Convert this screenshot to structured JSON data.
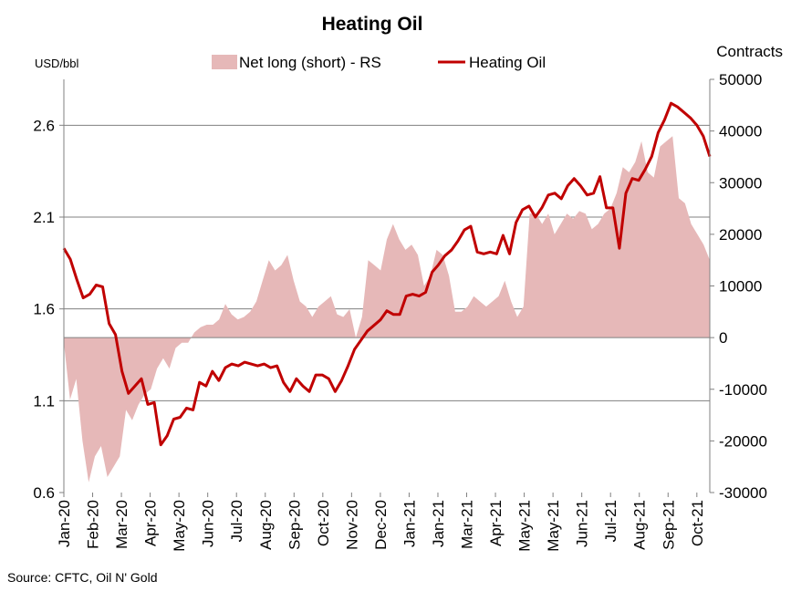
{
  "chart_data": {
    "type": "line",
    "title": "Heating Oil",
    "left_axis_label": "USD/bbl",
    "right_axis_label": "Contracts",
    "source": "Source: CFTC, Oil N' Gold",
    "left_ylim": [
      0.6,
      2.85
    ],
    "right_ylim": [
      -30000,
      50000
    ],
    "left_ticks": [
      0.6,
      1.1,
      1.6,
      2.1,
      2.6
    ],
    "left_tick_labels": [
      "0.6",
      "1.1",
      "1.6",
      "2.1",
      "2.6"
    ],
    "right_ticks": [
      -30000,
      -20000,
      -10000,
      0,
      10000,
      20000,
      30000,
      40000,
      50000
    ],
    "right_tick_labels": [
      "-30000",
      "-20000",
      "-10000",
      "0",
      "10000",
      "20000",
      "30000",
      "40000",
      "50000"
    ],
    "gridlines_left": [
      1.1,
      1.6,
      2.1,
      2.6
    ],
    "legend_position": "top-center",
    "months": [
      "Jan-20",
      "Feb-20",
      "Mar-20",
      "Apr-20",
      "May-20",
      "Jun-20",
      "Jul-20",
      "Aug-20",
      "Sep-20",
      "Oct-20",
      "Nov-20",
      "Dec-20",
      "Jan-21",
      "Jan-21",
      "Mar-21",
      "Apr-21",
      "May-21",
      "May-21",
      "Jun-21",
      "Jul-21",
      "Aug-21",
      "Sep-21",
      "Oct-21"
    ],
    "series": [
      {
        "name": "Net long (short) - RS",
        "type": "area",
        "axis": "right",
        "color": "#e6b8b8",
        "values": [
          -1000,
          -12000,
          -8000,
          -20000,
          -28000,
          -23000,
          -21000,
          -27000,
          -25000,
          -23000,
          -14000,
          -16000,
          -13000,
          -11000,
          -10000,
          -6000,
          -4000,
          -6000,
          -2000,
          -1000,
          -1000,
          1000,
          2000,
          2500,
          2500,
          3500,
          6500,
          4500,
          3500,
          4000,
          5000,
          7000,
          11000,
          15000,
          13000,
          14000,
          16000,
          11000,
          7000,
          6000,
          4000,
          6000,
          7000,
          8000,
          4500,
          4000,
          5500,
          0,
          4000,
          15000,
          14000,
          13000,
          19000,
          22000,
          19000,
          17000,
          18000,
          16000,
          10000,
          12000,
          17000,
          16000,
          12000,
          5000,
          5000,
          6000,
          8000,
          7000,
          6000,
          7000,
          8000,
          11000,
          7000,
          4000,
          6000,
          24000,
          24000,
          22000,
          24000,
          20000,
          22000,
          24000,
          23000,
          24500,
          24000,
          21000,
          22000,
          24000,
          25000,
          28000,
          33000,
          32000,
          34000,
          38000,
          32000,
          31000,
          37000,
          38000,
          39000,
          27000,
          26000,
          22000,
          20000,
          18000,
          15000
        ]
      },
      {
        "name": "Heating Oil",
        "type": "line",
        "axis": "left",
        "color": "#c00000",
        "values": [
          1.93,
          1.87,
          1.76,
          1.66,
          1.68,
          1.73,
          1.72,
          1.52,
          1.46,
          1.26,
          1.14,
          1.18,
          1.22,
          1.08,
          1.09,
          0.86,
          0.91,
          1.0,
          1.01,
          1.06,
          1.05,
          1.2,
          1.18,
          1.26,
          1.21,
          1.28,
          1.3,
          1.29,
          1.31,
          1.3,
          1.29,
          1.3,
          1.28,
          1.29,
          1.2,
          1.15,
          1.22,
          1.18,
          1.15,
          1.24,
          1.24,
          1.22,
          1.15,
          1.21,
          1.29,
          1.38,
          1.43,
          1.48,
          1.51,
          1.54,
          1.59,
          1.57,
          1.57,
          1.67,
          1.68,
          1.67,
          1.69,
          1.8,
          1.84,
          1.89,
          1.92,
          1.97,
          2.03,
          2.05,
          1.91,
          1.9,
          1.91,
          1.9,
          2.0,
          1.9,
          2.07,
          2.14,
          2.16,
          2.1,
          2.15,
          2.22,
          2.23,
          2.2,
          2.27,
          2.31,
          2.27,
          2.22,
          2.23,
          2.32,
          2.15,
          2.15,
          1.93,
          2.23,
          2.31,
          2.3,
          2.36,
          2.43,
          2.56,
          2.63,
          2.72,
          2.7,
          2.67,
          2.64,
          2.6,
          2.54,
          2.43
        ]
      }
    ]
  }
}
